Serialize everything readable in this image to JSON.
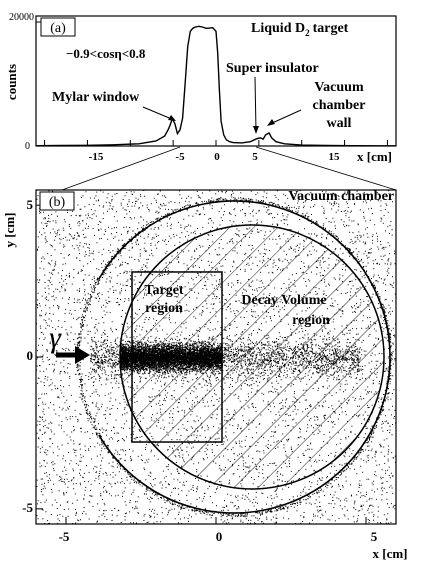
{
  "chart_data": [
    {
      "panel_label": "(a)",
      "type": "line",
      "ylabel": "counts",
      "xlabel": "x [cm]",
      "ytick_labels": [
        "20000",
        "0"
      ],
      "xtick_labels": [
        "-15",
        "-5",
        "0",
        "5",
        "15"
      ],
      "xlim": [
        -21,
        21
      ],
      "ylim": [
        0,
        20000
      ],
      "cut_text": "−0.9<cosη<0.8",
      "annotations": {
        "target": "Liquid D",
        "target_sub": "2",
        "target_rest": "target",
        "mylar": "Mylar window",
        "super": "Super insulator",
        "vacuum_l1": "Vacuum",
        "vacuum_l2": "chamber",
        "vacuum_l3": "wall"
      },
      "series": [
        {
          "x": [
            -21,
            -18,
            -15,
            -12,
            -9,
            -7,
            -6,
            -5.6,
            -5.4,
            -5.1,
            -4.8,
            -4.5,
            -4.2,
            -3.9,
            -3.6,
            -3.3,
            -3.0,
            -2.7,
            -2.4,
            -2.0,
            -1.6,
            -1.2,
            -0.8,
            -0.4,
            0,
            0.2,
            0.4,
            0.6,
            0.9,
            1.2,
            1.6,
            2.0,
            3.0,
            4.0,
            4.8,
            5.2,
            5.5,
            5.8,
            6.2,
            6.5,
            7.0,
            8.0,
            10,
            13,
            16,
            19,
            21
          ],
          "y": [
            50,
            80,
            120,
            200,
            350,
            800,
            1600,
            2600,
            3200,
            4400,
            3600,
            2000,
            2600,
            4500,
            10000,
            16000,
            18500,
            19000,
            19200,
            19300,
            19200,
            19000,
            19000,
            19100,
            18500,
            15000,
            9000,
            4000,
            1800,
            1000,
            700,
            550,
            500,
            700,
            1200,
            1300,
            1100,
            1800,
            2100,
            1300,
            700,
            350,
            150,
            80,
            50,
            40,
            30
          ]
        }
      ]
    },
    {
      "panel_label": "(b)",
      "type": "scatter",
      "ylabel": "y [cm]",
      "xlabel": "x [cm]",
      "xlim": [
        -6,
        6
      ],
      "ylim": [
        -5.5,
        5.5
      ],
      "xtick_labels": [
        "-5",
        "0",
        "5"
      ],
      "ytick_labels": [
        "5",
        "0",
        "-5"
      ],
      "gamma_label": "γ",
      "regions": {
        "vacuum": "Vacuum chamber",
        "target_l1": "Target",
        "target_l2": "region",
        "decay_l1": "Decay Volume",
        "decay_l2": "region"
      },
      "vacuum_chamber": {
        "cx": 0.6,
        "cy": 0,
        "r": 5.2,
        "gap_deg": 30
      },
      "decay_volume": {
        "cx": 1.2,
        "cy": 0,
        "r": 4.4
      },
      "target_box": {
        "x0": -2.8,
        "x1": 0.2,
        "y0": -2.8,
        "y1": 2.8
      }
    }
  ]
}
